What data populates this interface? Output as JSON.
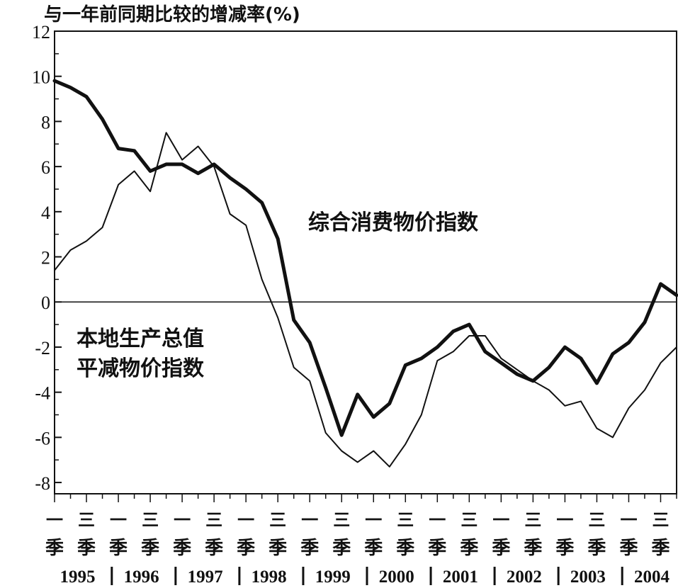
{
  "chart_data": {
    "type": "line",
    "title": "与一年前同期比较的增减率(%)",
    "ylim": [
      -8.5,
      12
    ],
    "yticks": [
      -8,
      -6,
      -4,
      -2,
      0,
      2,
      4,
      6,
      8,
      10,
      12
    ],
    "ytick_labels": [
      "-8",
      "-6",
      "-4",
      "-2",
      "0",
      "2",
      "4",
      "6",
      "8",
      "10",
      "12"
    ],
    "quarter_labels": [
      "一季",
      "三季",
      "一季",
      "三季",
      "一季",
      "三季",
      "一季",
      "三季",
      "一季",
      "三季",
      "一季",
      "三季",
      "一季",
      "三季",
      "一季",
      "三季",
      "一季",
      "三季",
      "一季",
      "三季"
    ],
    "year_labels": [
      "1995",
      "1996",
      "1997",
      "1998",
      "1999",
      "2000",
      "2001",
      "2002",
      "2003",
      "2004"
    ],
    "x": [
      "1995Q1",
      "1995Q2",
      "1995Q3",
      "1995Q4",
      "1996Q1",
      "1996Q2",
      "1996Q3",
      "1996Q4",
      "1997Q1",
      "1997Q2",
      "1997Q3",
      "1997Q4",
      "1998Q1",
      "1998Q2",
      "1998Q3",
      "1998Q4",
      "1999Q1",
      "1999Q2",
      "1999Q3",
      "1999Q4",
      "2000Q1",
      "2000Q2",
      "2000Q3",
      "2000Q4",
      "2001Q1",
      "2001Q2",
      "2001Q3",
      "2001Q4",
      "2002Q1",
      "2002Q2",
      "2002Q3",
      "2002Q4",
      "2003Q1",
      "2003Q2",
      "2003Q3",
      "2003Q4",
      "2004Q1",
      "2004Q2",
      "2004Q3",
      "2004Q4"
    ],
    "series": [
      {
        "name": "综合消费物价指数",
        "style": "thick",
        "values": [
          9.8,
          9.5,
          9.1,
          8.1,
          6.8,
          6.7,
          5.8,
          6.1,
          6.1,
          5.7,
          6.1,
          5.5,
          5.0,
          4.4,
          2.8,
          -0.8,
          -1.8,
          -3.8,
          -5.9,
          -4.1,
          -5.1,
          -4.5,
          -2.8,
          -2.5,
          -2.0,
          -1.3,
          -1.0,
          -2.2,
          -2.7,
          -3.2,
          -3.5,
          -2.9,
          -2.0,
          -2.5,
          -3.6,
          -2.3,
          -1.8,
          -0.9,
          0.8,
          0.3
        ]
      },
      {
        "name": "本地生产总值平减物价指数",
        "style": "thin",
        "values": [
          1.4,
          2.3,
          2.7,
          3.3,
          5.2,
          5.8,
          4.9,
          7.5,
          6.3,
          6.9,
          6.0,
          3.9,
          3.4,
          1.0,
          -0.7,
          -2.9,
          -3.5,
          -5.8,
          -6.6,
          -7.1,
          -6.6,
          -7.3,
          -6.3,
          -5.0,
          -2.6,
          -2.2,
          -1.5,
          -1.5,
          -2.5,
          -3.0,
          -3.5,
          -3.9,
          -4.6,
          -4.4,
          -5.6,
          -6.0,
          -4.7,
          -3.9,
          -2.7,
          -2.0
        ]
      }
    ],
    "annotations": {
      "cpi_label": "综合消费物价指数",
      "deflator_label_line1": "本地生产总值",
      "deflator_label_line2": "平减物价指数"
    },
    "grid": false,
    "zero_line": true,
    "line_color": "#111111"
  }
}
